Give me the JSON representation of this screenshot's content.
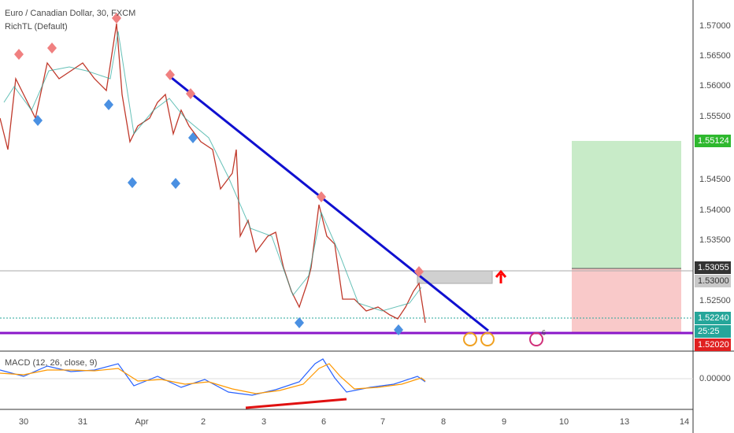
{
  "header": {
    "title": "Euro / Canadian Dollar, 30, FXCM",
    "indicator": "RichTL (Default)"
  },
  "price_axis": {
    "labels": [
      "1.57000",
      "1.56500",
      "1.56000",
      "1.55500",
      "1.54500",
      "1.54000",
      "1.53500",
      "1.52500"
    ]
  },
  "price_tags": [
    {
      "label": "1.55124",
      "kind": "green"
    },
    {
      "label": "1.53055",
      "kind": "dark"
    },
    {
      "label": "1.53000",
      "kind": "grey"
    },
    {
      "label": "1.52240",
      "kind": "teal"
    },
    {
      "label": "25:25",
      "kind": "teal"
    },
    {
      "label": "1.52020",
      "kind": "red"
    }
  ],
  "macd": {
    "label": "MACD (12, 26, close, 9)",
    "zero_label": "0.00000"
  },
  "marker": "6",
  "time_axis": {
    "labels": [
      "30",
      "31",
      "Apr",
      "2",
      "3",
      "6",
      "7",
      "8",
      "9",
      "10",
      "13",
      "14"
    ]
  }
}
